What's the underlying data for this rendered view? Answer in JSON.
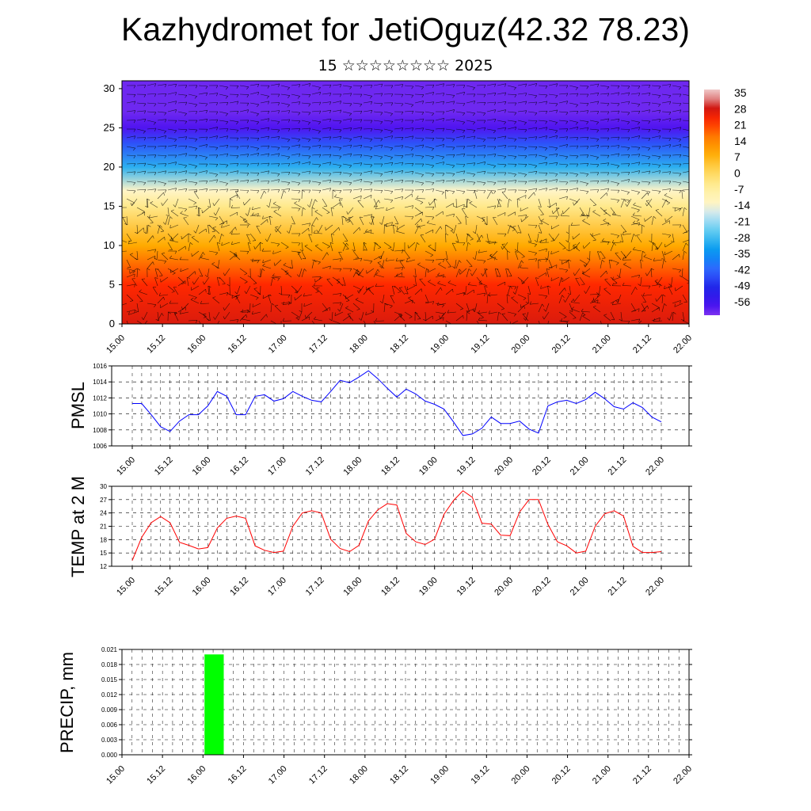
{
  "header": {
    "title": "Kazhydromet for JetiOguz(42.32 78.23)",
    "subtitle": "15 ☆☆☆☆☆☆☆☆ 2025"
  },
  "colors": {
    "pmsl_line": "#0000ff",
    "temp_line": "#ff0000",
    "precip_bar": "#00ff00",
    "frame": "#000000"
  },
  "chart_data": [
    {
      "type": "heatmap",
      "title": "",
      "xlabel": "",
      "ylabel": "",
      "x_ticks": [
        "15.00",
        "15.12",
        "16.00",
        "16.12",
        "17.00",
        "17.12",
        "18.00",
        "18.12",
        "19.00",
        "19.12",
        "20.00",
        "20.12",
        "21.00",
        "21.12",
        "22.00"
      ],
      "y_ticks": [
        "0",
        "5",
        "10",
        "15",
        "20",
        "25",
        "30"
      ],
      "ylim": [
        0,
        31
      ],
      "colorbar_labels": [
        "35",
        "28",
        "21",
        "14",
        "7",
        "0",
        "-7",
        "-14",
        "-21",
        "-28",
        "-35",
        "-42",
        "-49",
        "-56"
      ],
      "level_temperature_profile": [
        {
          "level": 0,
          "value": 28
        },
        {
          "level": 5,
          "value": 24
        },
        {
          "level": 10,
          "value": 10
        },
        {
          "level": 15,
          "value": -3
        },
        {
          "level": 17,
          "value": -12
        },
        {
          "level": 20,
          "value": -28
        },
        {
          "level": 23,
          "value": -42
        },
        {
          "level": 25,
          "value": -56
        },
        {
          "level": 27,
          "value": -58
        },
        {
          "level": 31,
          "value": -58
        }
      ],
      "overlay": "wind barbs"
    },
    {
      "type": "line",
      "ylabel": "PMSL",
      "ylim": [
        1006,
        1016
      ],
      "y_ticks": [
        "1006",
        "1008",
        "1010",
        "1012",
        "1014",
        "1016"
      ],
      "x_ticks": [
        "15.00",
        "15.12",
        "16.00",
        "16.12",
        "17.00",
        "17.12",
        "18.00",
        "18.12",
        "19.00",
        "19.12",
        "20.00",
        "20.12",
        "21.00",
        "21.12",
        "22.00"
      ],
      "x_step_hours": 3,
      "series": [
        {
          "values": [
            1011.3,
            1011.3,
            1009.9,
            1008.4,
            1007.8,
            1009.1,
            1009.9,
            1009.9,
            1011,
            1012.8,
            1012.2,
            1009.9,
            1009.9,
            1012.2,
            1012.4,
            1011.6,
            1011.9,
            1012.8,
            1012.2,
            1011.7,
            1011.5,
            1012.8,
            1014.2,
            1013.9,
            1014.6,
            1015.4,
            1014.4,
            1013.2,
            1012.1,
            1013.1,
            1012.5,
            1011.6,
            1011.2,
            1010.6,
            1009,
            1007.3,
            1007.5,
            1008.2,
            1009.6,
            1008.8,
            1008.8,
            1009.1,
            1008.1,
            1007.6,
            1011,
            1011.5,
            1011.7,
            1011.3,
            1011.8,
            1012.7,
            1011.9,
            1010.9,
            1010.6,
            1011.4,
            1010.8,
            1009.6,
            1009
          ]
        }
      ]
    },
    {
      "type": "line",
      "ylabel": "TEMP at 2 M",
      "ylim": [
        12,
        30
      ],
      "y_ticks": [
        "12",
        "15",
        "18",
        "21",
        "24",
        "27",
        "30"
      ],
      "x_ticks": [
        "15.00",
        "15.12",
        "16.00",
        "16.12",
        "17.00",
        "17.12",
        "18.00",
        "18.12",
        "19.00",
        "19.12",
        "20.00",
        "20.12",
        "21.00",
        "21.12",
        "22.00"
      ],
      "x_step_hours": 3,
      "series": [
        {
          "values": [
            13.3,
            18.5,
            21.8,
            23.2,
            21.8,
            17.4,
            16.7,
            15.9,
            16.2,
            20.6,
            22.8,
            23.3,
            22.8,
            16.6,
            15.6,
            15.1,
            15.4,
            21,
            24,
            24.5,
            24,
            18.1,
            16,
            15.3,
            16.7,
            22.2,
            24.7,
            26.1,
            25.8,
            19.4,
            17.5,
            16.9,
            18.1,
            23.7,
            26.8,
            29,
            27.5,
            21.7,
            21.5,
            19,
            18.9,
            24.2,
            27,
            27,
            21.4,
            17.5,
            16.6,
            15,
            15.4,
            21,
            23.8,
            24.5,
            23.3,
            16.5,
            15.1,
            15.1,
            15.3
          ]
        }
      ]
    },
    {
      "type": "bar",
      "ylabel": "PRECIP, mm",
      "ylim": [
        0,
        0.021
      ],
      "y_ticks": [
        "0.000",
        "0.003",
        "0.006",
        "0.009",
        "0.012",
        "0.015",
        "0.018",
        "0.021"
      ],
      "x_ticks": [
        "15.00",
        "15.12",
        "16.00",
        "16.12",
        "17.00",
        "17.12",
        "18.00",
        "18.12",
        "19.00",
        "19.12",
        "20.00",
        "20.12",
        "21.00",
        "21.12",
        "22.00"
      ],
      "x_step_hours": 3,
      "series": [
        {
          "values": [
            0,
            0,
            0,
            0,
            0,
            0,
            0,
            0,
            0.02,
            0,
            0,
            0,
            0,
            0,
            0,
            0,
            0,
            0,
            0,
            0,
            0,
            0,
            0,
            0,
            0,
            0,
            0,
            0,
            0,
            0,
            0,
            0,
            0,
            0,
            0,
            0,
            0,
            0,
            0,
            0,
            0,
            0,
            0,
            0,
            0,
            0,
            0,
            0,
            0,
            0,
            0,
            0,
            0,
            0,
            0,
            0
          ]
        }
      ]
    }
  ]
}
